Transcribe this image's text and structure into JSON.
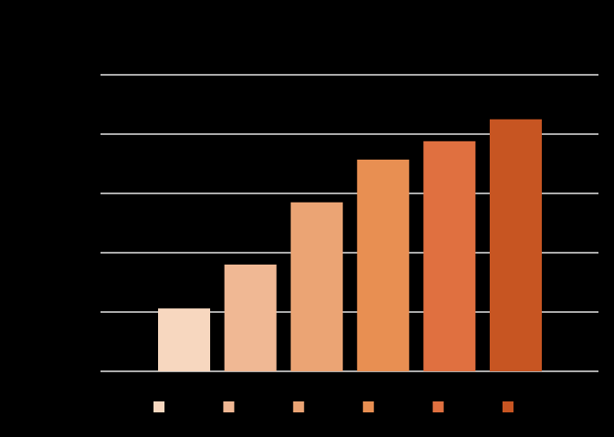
{
  "chart_data": {
    "type": "bar",
    "values": [
      1.06,
      1.8,
      2.85,
      3.57,
      3.88,
      4.25
    ],
    "colors": [
      "#f7d7bf",
      "#f0b894",
      "#eba474",
      "#e88f52",
      "#e07040",
      "#c75522"
    ],
    "ylim": [
      0,
      5
    ],
    "yticks": [
      0,
      1,
      2,
      3,
      4,
      5
    ],
    "grid": true,
    "legend": "bottom"
  }
}
